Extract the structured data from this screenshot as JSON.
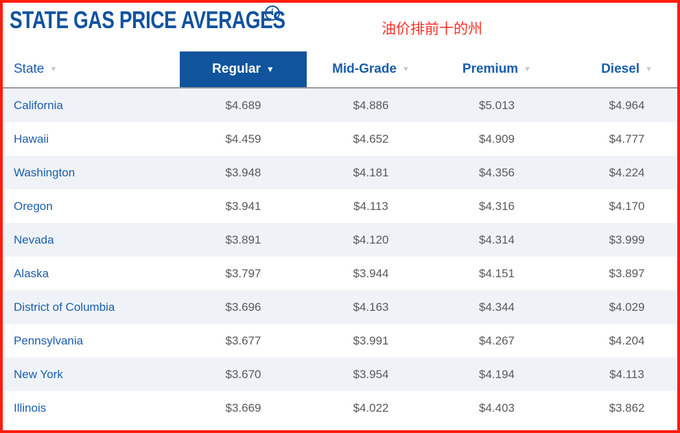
{
  "title": {
    "text": "STATE GAS PRICE AVERAGES"
  },
  "icons": {
    "info": "i",
    "chevron_down": "▼"
  },
  "annotation": {
    "text": "油价排前十的州"
  },
  "table": {
    "columns": [
      {
        "key": "state",
        "label": "State",
        "active": false
      },
      {
        "key": "regular",
        "label": "Regular",
        "active": true
      },
      {
        "key": "midgrade",
        "label": "Mid-Grade",
        "active": false
      },
      {
        "key": "premium",
        "label": "Premium",
        "active": false
      },
      {
        "key": "diesel",
        "label": "Diesel",
        "active": false
      }
    ],
    "rows": [
      {
        "state": "California",
        "regular": "$4.689",
        "midgrade": "$4.886",
        "premium": "$5.013",
        "diesel": "$4.964"
      },
      {
        "state": "Hawaii",
        "regular": "$4.459",
        "midgrade": "$4.652",
        "premium": "$4.909",
        "diesel": "$4.777"
      },
      {
        "state": "Washington",
        "regular": "$3.948",
        "midgrade": "$4.181",
        "premium": "$4.356",
        "diesel": "$4.224"
      },
      {
        "state": "Oregon",
        "regular": "$3.941",
        "midgrade": "$4.113",
        "premium": "$4.316",
        "diesel": "$4.170"
      },
      {
        "state": "Nevada",
        "regular": "$3.891",
        "midgrade": "$4.120",
        "premium": "$4.314",
        "diesel": "$3.999"
      },
      {
        "state": "Alaska",
        "regular": "$3.797",
        "midgrade": "$3.944",
        "premium": "$4.151",
        "diesel": "$3.897"
      },
      {
        "state": "District of Columbia",
        "regular": "$3.696",
        "midgrade": "$4.163",
        "premium": "$4.344",
        "diesel": "$4.029"
      },
      {
        "state": "Pennsylvania",
        "regular": "$3.677",
        "midgrade": "$3.991",
        "premium": "$4.267",
        "diesel": "$4.204"
      },
      {
        "state": "New York",
        "regular": "$3.670",
        "midgrade": "$3.954",
        "premium": "$4.194",
        "diesel": "$4.113"
      },
      {
        "state": "Illinois",
        "regular": "$3.669",
        "midgrade": "$4.022",
        "premium": "$4.403",
        "diesel": "$3.862"
      }
    ]
  },
  "colors": {
    "brand-blue": "#11539e",
    "link-blue": "#1a5dad",
    "header-active-blue": "#0f549c",
    "stripe-blue": "#eff3f7",
    "price-gray": "#58595b",
    "divider-gray": "#97999b",
    "chevron-gray": "#c4c9ce",
    "annotation-red": "#ff1c0e",
    "annotation-text-red": "#fa3027"
  }
}
